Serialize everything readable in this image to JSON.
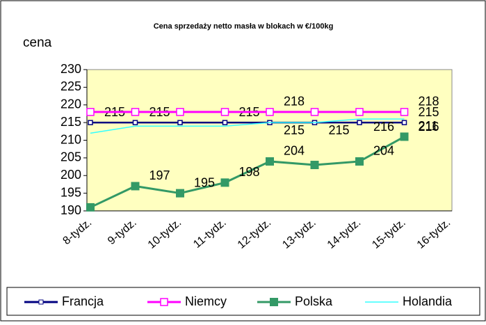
{
  "chart_data": {
    "type": "line",
    "title": "Cena sprzedaży netto masła w blokach w €/100kg",
    "y_label": "cena",
    "categories": [
      "8-tydz.",
      "9-tydz.",
      "10-tydz.",
      "11-tydz.",
      "12-tydz.",
      "13-tydz.",
      "14-tydz.",
      "15-tydz.",
      "16-tydz."
    ],
    "ylim": [
      190,
      230
    ],
    "yticks": [
      190,
      195,
      200,
      205,
      210,
      215,
      220,
      225,
      230
    ],
    "grid": false,
    "legend": "bottom",
    "series": [
      {
        "name": "Francja",
        "color": "#000080",
        "marker": "square-small",
        "values": [
          215,
          215,
          215,
          215,
          215,
          215,
          215,
          215,
          null
        ],
        "value_labels": [
          "215",
          "215",
          null,
          "215",
          null,
          null,
          null,
          "215",
          null
        ]
      },
      {
        "name": "Niemcy",
        "color": "#ff00ff",
        "marker": "square-open",
        "values": [
          218,
          218,
          218,
          218,
          218,
          218,
          218,
          218,
          null
        ],
        "value_labels": [
          null,
          null,
          null,
          null,
          "218",
          null,
          null,
          "218",
          null
        ]
      },
      {
        "name": "Polska",
        "color": "#339966",
        "marker": "square-filled",
        "values": [
          191,
          197,
          195,
          198,
          204,
          203,
          204,
          211,
          null
        ],
        "value_labels": [
          null,
          "197",
          "195",
          "198",
          "204",
          null,
          "204",
          "211",
          null
        ]
      },
      {
        "name": "Holandia",
        "color": "#33ffff",
        "marker": "none",
        "values": [
          212,
          214,
          214,
          214,
          215,
          215,
          216,
          216,
          null
        ],
        "value_labels": [
          null,
          null,
          null,
          null,
          "215",
          "215",
          "216",
          "216",
          null
        ]
      }
    ]
  }
}
